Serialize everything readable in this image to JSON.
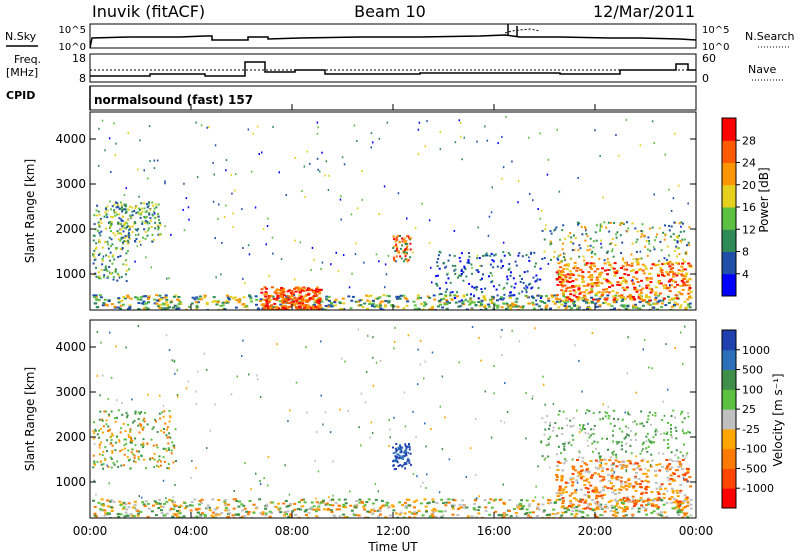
{
  "header": {
    "station": "Inuvik (fitACF)",
    "beam": "Beam 10",
    "date": "12/Mar/2011"
  },
  "top_panels": {
    "nsky_label": "N.Sky",
    "nsky_ticks": [
      "10^5",
      "10^0"
    ],
    "nsearch_label": "N.Search",
    "nsearch_ticks": [
      "10^5",
      "10^0"
    ],
    "freq_label_1": "Freq.",
    "freq_label_2": "[MHz]",
    "freq_ticks": [
      "18",
      "8"
    ],
    "nave_label": "Nave",
    "nave_ticks": [
      "60",
      "0"
    ],
    "cpid_label": "CPID",
    "cpid_text": "normalsound (fast) 157"
  },
  "chart_data": [
    {
      "type": "heatmap",
      "name": "power",
      "ylabel": "Slant Range [km]",
      "y_ticks": [
        "1000",
        "2000",
        "3000",
        "4000"
      ],
      "y_tick_values": [
        1000,
        2000,
        3000,
        4000
      ],
      "ylim": [
        200,
        4600
      ],
      "colorbar_label": "Power [dB]",
      "colorbar_ticks": [
        "4",
        "8",
        "12",
        "16",
        "20",
        "24",
        "28"
      ],
      "colorbar_colors": [
        "#0000ff",
        "#1f4fa8",
        "#2e8b57",
        "#5cc043",
        "#e6d01e",
        "#ff9500",
        "#ff5a00",
        "#ff0000"
      ]
    },
    {
      "type": "heatmap",
      "name": "velocity",
      "ylabel": "Slant Range [km]",
      "y_ticks": [
        "1000",
        "2000",
        "3000",
        "4000"
      ],
      "y_tick_values": [
        1000,
        2000,
        3000,
        4000
      ],
      "ylim": [
        200,
        4600
      ],
      "colorbar_label": "Velocity [m s⁻¹]",
      "colorbar_ticks": [
        "1000",
        "500",
        "100",
        "25",
        "-25",
        "-100",
        "-500",
        "-1000"
      ],
      "colorbar_colors": [
        "#2040b0",
        "#2a6fb8",
        "#3f8f4a",
        "#5cc043",
        "#c0c0c0",
        "#ffa500",
        "#ff7a00",
        "#ff4500",
        "#ff0000"
      ]
    }
  ],
  "xaxis": {
    "xlabel": "Time UT",
    "ticks": [
      "00:00",
      "04:00",
      "08:00",
      "12:00",
      "16:00",
      "20:00",
      "00:00"
    ],
    "xlim_hours": [
      0,
      24
    ]
  }
}
